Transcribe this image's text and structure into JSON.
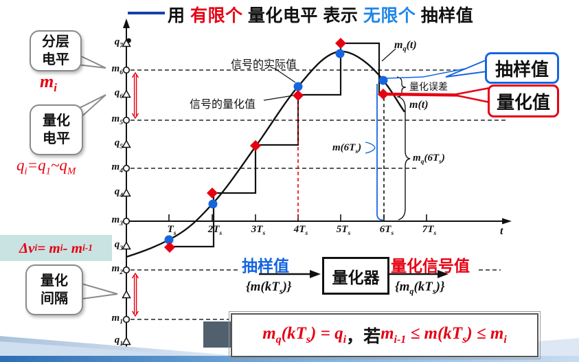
{
  "colors": {
    "red": "#e60012",
    "sample_blue": "#1565e0",
    "title_blue": "#1e86e8",
    "dash_blue": "#1b3faa",
    "delta_box_bg": "#c9e2e2",
    "bubble_border_gray": "#8a8a8a"
  },
  "title": {
    "parts": [
      {
        "tex": "用 ",
        "color": "#111111"
      },
      {
        "tex": "有限个",
        "color": "#e60012"
      },
      {
        "tex": " 量化电平 ",
        "color": "#111111"
      },
      {
        "tex": "表示 ",
        "color": "#111111"
      },
      {
        "tex": "无限个",
        "color": "#1e86e8"
      },
      {
        "tex": " 抽样值",
        "color": "#111111"
      }
    ]
  },
  "callouts": {
    "layer_level": {
      "line1": "分层",
      "line2": "电平"
    },
    "quant_level": {
      "line1": "量化",
      "line2": "电平"
    },
    "quant_interval": {
      "line1": "量化",
      "line2": "间隔"
    },
    "sample_value": "抽样值",
    "quantized_value": "量化值"
  },
  "annotations": {
    "mi": "m_{i}",
    "qi_range": "q_{i}=q_{1}~q_{M}",
    "delta": "Δv_{i} = m_{i} - m_{i-1}",
    "signal_actual": "信号的实际值",
    "signal_quant": "信号的量化值",
    "mq_t": "m_{q}(t)",
    "m_t": "m(t)",
    "quant_error": "量化误差",
    "m_6ts": "m(6T_{s})",
    "mq_6ts": "m_{q}(6T_{s})"
  },
  "axes": {
    "y_labels": [
      "q_{7}",
      "m_{6}",
      "q_{6}",
      "m_{5}",
      "q_{5}",
      "m_{4}",
      "q_{4}",
      "m_{3}",
      "q_{3}",
      "m_{2}",
      "m_{1}",
      "q_{1}"
    ],
    "x_labels": [
      "T_{s}",
      "2T_{s}",
      "3T_{s}",
      "4T_{s}",
      "5T_{s}",
      "6T_{s}",
      "7T_{s}"
    ],
    "t_label": "t"
  },
  "flow": {
    "input_label": "抽样值",
    "input_math": "{m(kT_{s})}",
    "box": "量化器",
    "output_label": "量化信号值",
    "output_math": "{m_{q}(kT_{s})}"
  },
  "formula": {
    "parts": [
      {
        "tex": "m_{q}(kT_{s}) = q_{i}",
        "color": "#e60012"
      },
      {
        "tex": " ，",
        "color": "#111111",
        "upright": true
      },
      {
        "tex": "若 ",
        "color": "#111111",
        "upright": true
      },
      {
        "tex": "m_{i-1} ≤ m(kT_{s}) ≤ m_{i}",
        "color": "#e60012"
      }
    ]
  }
}
